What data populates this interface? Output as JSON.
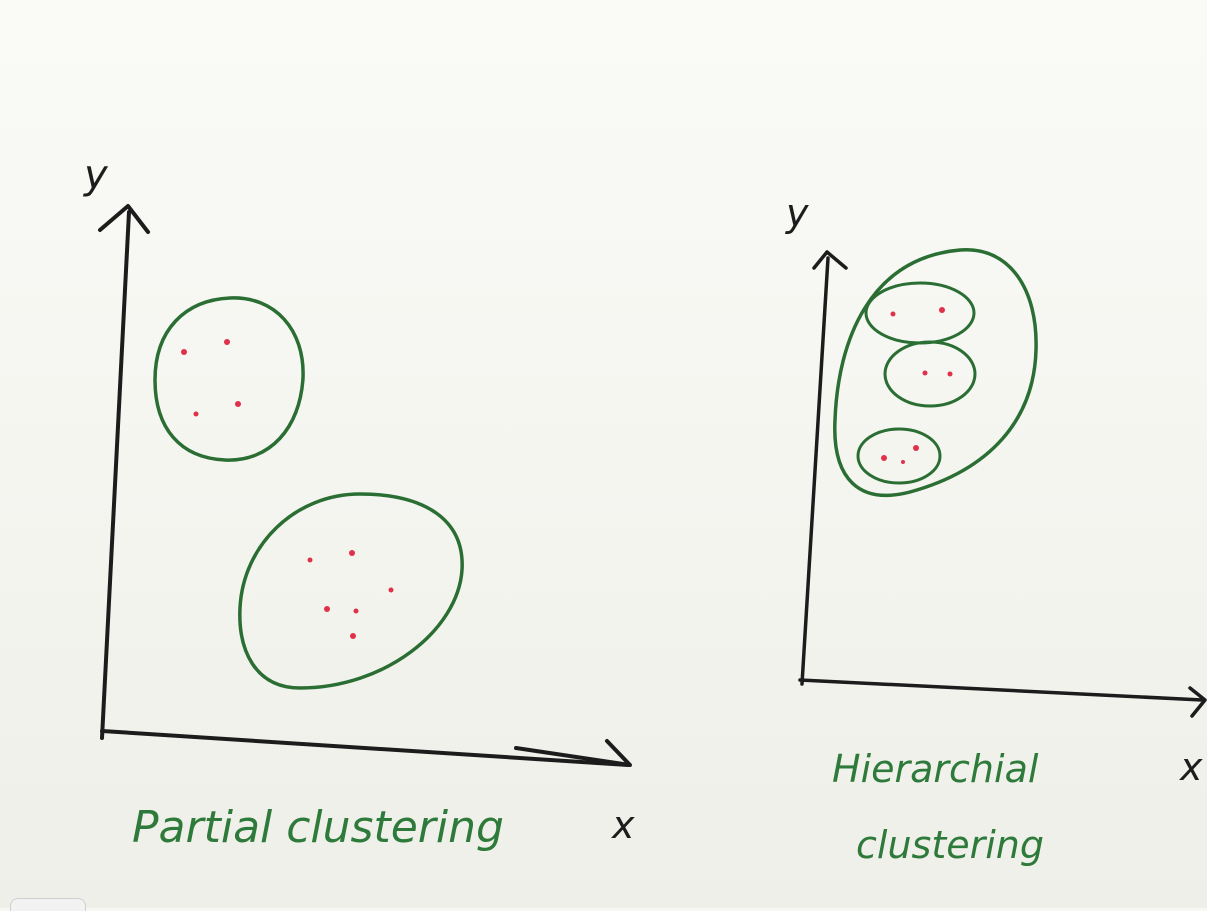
{
  "diagram": {
    "left_panel": {
      "y_axis_label": "y",
      "x_axis_label": "x",
      "caption": "Partial clustering"
    },
    "right_panel": {
      "y_axis_label": "y",
      "x_axis_label": "x",
      "caption_line1": "Hierarchial",
      "caption_line2": "clustering"
    }
  },
  "colors": {
    "axis": "#1c1c1c",
    "cluster_outline": "#2a6e33",
    "points": "#e0314a",
    "caption_text": "#2e7a3a"
  }
}
